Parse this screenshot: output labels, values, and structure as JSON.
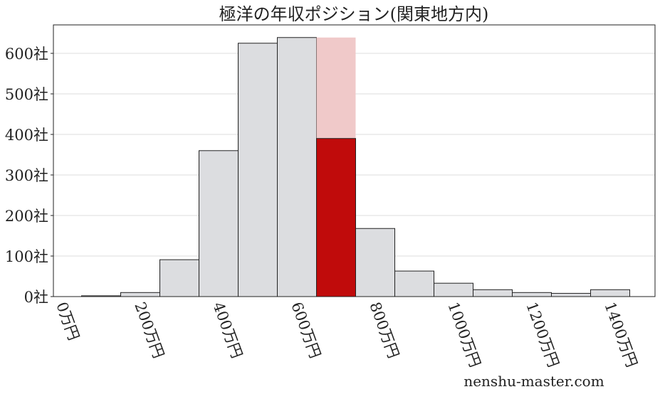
{
  "chart_data": {
    "type": "bar",
    "title": "極洋の年収ポジション(関東地方内)",
    "watermark": "nenshu-master.com",
    "bin_width": 100,
    "bins": [
      100,
      200,
      300,
      400,
      500,
      600,
      700,
      800,
      900,
      1000,
      1100,
      1200,
      1300,
      1400
    ],
    "values": [
      2,
      10,
      91,
      360,
      625,
      639,
      390,
      168,
      63,
      33,
      17,
      10,
      8,
      17
    ],
    "highlight": {
      "bin": 700,
      "value": 390,
      "background_value": 639
    },
    "xlim": [
      -20,
      1520
    ],
    "ylim": [
      0,
      670
    ],
    "xticks": [
      0,
      200,
      400,
      600,
      800,
      1000,
      1200,
      1400
    ],
    "xtick_labels": [
      "0万円",
      "200万円",
      "400万円",
      "600万円",
      "800万円",
      "1000万円",
      "1200万円",
      "1400万円"
    ],
    "yticks": [
      0,
      100,
      200,
      300,
      400,
      500,
      600
    ],
    "ytick_labels": [
      "0社",
      "100社",
      "200社",
      "300社",
      "400社",
      "500社",
      "600社"
    ],
    "grid": "horizontal",
    "colors": {
      "bar": "#dcdde0",
      "highlight": "#c00b0b",
      "highlight_bg": "#f0c9c9",
      "edge": "#222222",
      "grid": "#dddddd"
    }
  }
}
